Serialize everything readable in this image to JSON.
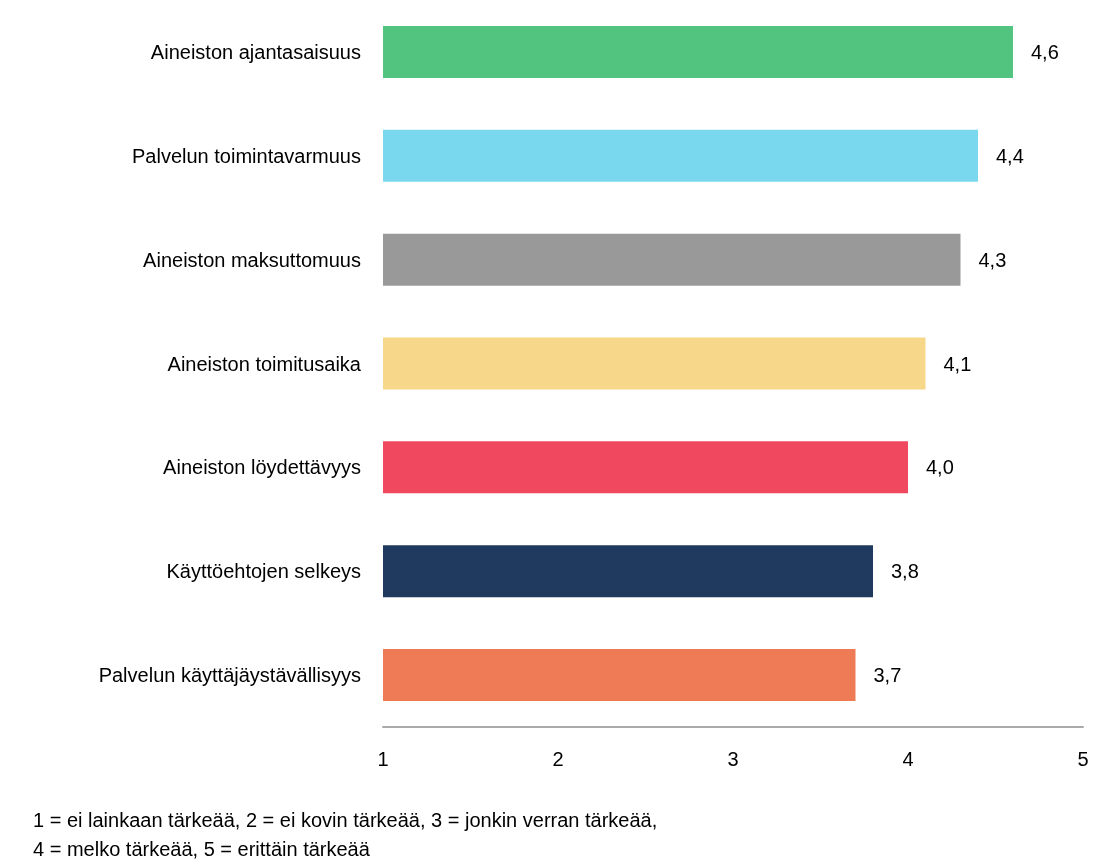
{
  "chart_data": {
    "type": "bar",
    "orientation": "horizontal",
    "categories": [
      "Aineiston ajantasaisuus",
      "Palvelun toimintavarmuus",
      "Aineiston maksuttomuus",
      "Aineiston toimitusaika",
      "Aineiston löydettävyys",
      "Käyttöehtojen selkeys",
      "Palvelun käyttäjäystävällisyys"
    ],
    "values": [
      4.6,
      4.4,
      4.3,
      4.1,
      4.0,
      3.8,
      3.7
    ],
    "colors": [
      "#52c47f",
      "#7ad8ee",
      "#999999",
      "#f7d78a",
      "#f0485f",
      "#20395e",
      "#ef7b56"
    ],
    "value_labels": [
      "4,6",
      "4,4",
      "4,3",
      "4,1",
      "4,0",
      "3,8",
      "3,7"
    ],
    "xlim": [
      1,
      5
    ],
    "xticks": [
      1,
      2,
      3,
      4,
      5
    ],
    "grid": false,
    "annotations": [
      "1 = ei lainkaan tärkeää, 2 = ei kovin tärkeää, 3 = jonkin verran tärkeää,",
      "4 = melko tärkeää, 5 = erittäin tärkeää"
    ]
  }
}
